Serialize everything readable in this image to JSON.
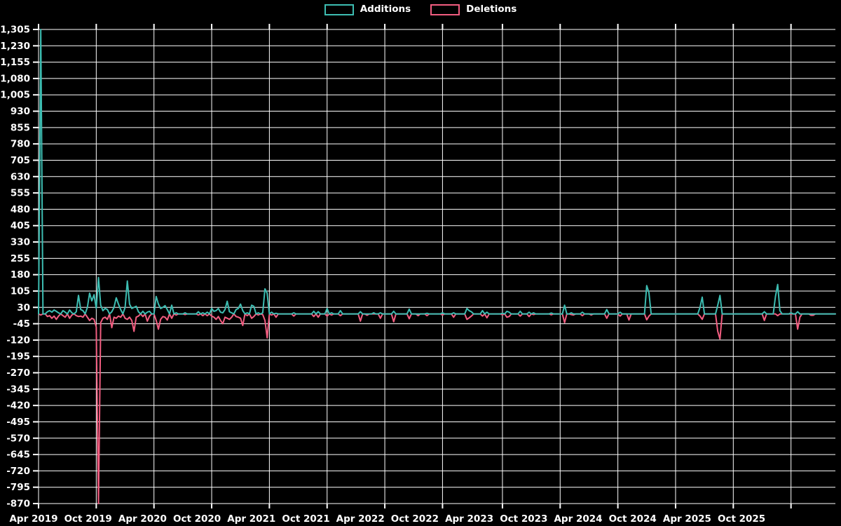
{
  "legend": {
    "items": [
      {
        "label": "Additions",
        "color": "#3dbdb2"
      },
      {
        "label": "Deletions",
        "color": "#f25d80"
      }
    ]
  },
  "chart_data": {
    "type": "line",
    "title": "",
    "background": "#000000",
    "grid_color": "#ffffff",
    "text_color": "#ffffff",
    "grid": true,
    "legend_position": "top-center",
    "x_axis": {
      "unit": "week",
      "start_label": "Apr 2019",
      "n_points": 360,
      "tick_labels": [
        "Apr 2019",
        "Oct 2019",
        "Apr 2020",
        "Oct 2020",
        "Apr 2021",
        "Oct 2021",
        "Apr 2022",
        "Oct 2022",
        "Apr 2023",
        "Oct 2023",
        "Apr 2024",
        "Oct 2024",
        "Apr 2025",
        "Oct 2025"
      ]
    },
    "y_axis": {
      "min": -870,
      "max": 1305,
      "step": 75,
      "tick_values": [
        1305,
        1230,
        1155,
        1080,
        1005,
        930,
        855,
        780,
        705,
        630,
        555,
        480,
        405,
        330,
        255,
        180,
        105,
        30,
        -45,
        -120,
        -195,
        -270,
        -345,
        -420,
        -495,
        -570,
        -645,
        -720,
        -795,
        -870
      ],
      "tick_labels": [
        "1,305",
        "1,230",
        "1,155",
        "1,080",
        "1,005",
        "930",
        "855",
        "780",
        "705",
        "630",
        "555",
        "480",
        "405",
        "330",
        "255",
        "180",
        "105",
        "30",
        "-45",
        "-120",
        "-195",
        "-270",
        "-345",
        "-420",
        "-495",
        "-570",
        "-645",
        "-720",
        "-795",
        "-870"
      ]
    },
    "series": [
      {
        "name": "Additions",
        "color": "#3dbdb2",
        "sign": "positive",
        "default_value": 0
      },
      {
        "name": "Deletions",
        "color": "#f25d80",
        "sign": "negative",
        "default_value": 0
      }
    ],
    "weekly_values": {
      "format": [
        "week_index",
        "additions",
        "deletions"
      ],
      "unlisted_weeks": [
        0,
        0
      ],
      "points": [
        [
          1,
          1305,
          -5
        ],
        [
          4,
          10,
          -12
        ],
        [
          5,
          15,
          -8
        ],
        [
          6,
          8,
          -20
        ],
        [
          7,
          18,
          -10
        ],
        [
          8,
          12,
          -25
        ],
        [
          9,
          5,
          -10
        ],
        [
          11,
          15,
          -8
        ],
        [
          12,
          8,
          -15
        ],
        [
          14,
          18,
          -20
        ],
        [
          15,
          5,
          -5
        ],
        [
          17,
          10,
          -8
        ],
        [
          18,
          85,
          -12
        ],
        [
          19,
          20,
          -10
        ],
        [
          20,
          15,
          -15
        ],
        [
          22,
          30,
          -15
        ],
        [
          23,
          95,
          -30
        ],
        [
          24,
          60,
          -20
        ],
        [
          25,
          88,
          -25
        ],
        [
          26,
          25,
          -60
        ],
        [
          27,
          167,
          -870
        ],
        [
          28,
          40,
          -40
        ],
        [
          29,
          15,
          -20
        ],
        [
          30,
          25,
          -15
        ],
        [
          31,
          20,
          -25
        ],
        [
          33,
          10,
          -63
        ],
        [
          34,
          30,
          -15
        ],
        [
          35,
          74,
          -20
        ],
        [
          36,
          45,
          -10
        ],
        [
          37,
          20,
          -15
        ],
        [
          39,
          30,
          -20
        ],
        [
          40,
          151,
          -25
        ],
        [
          41,
          45,
          -15
        ],
        [
          42,
          25,
          -30
        ],
        [
          43,
          30,
          -80
        ],
        [
          44,
          35,
          -15
        ],
        [
          45,
          10,
          -10
        ],
        [
          47,
          12,
          -12
        ],
        [
          49,
          8,
          -33
        ],
        [
          50,
          12,
          -10
        ],
        [
          53,
          80,
          -30
        ],
        [
          54,
          45,
          -70
        ],
        [
          55,
          25,
          -25
        ],
        [
          56,
          30,
          -12
        ],
        [
          57,
          38,
          -15
        ],
        [
          58,
          20,
          -28
        ],
        [
          60,
          40,
          -20
        ],
        [
          62,
          5,
          -5
        ],
        [
          66,
          5,
          -3
        ],
        [
          72,
          10,
          -5
        ],
        [
          74,
          5,
          -8
        ],
        [
          76,
          8,
          -8
        ],
        [
          78,
          25,
          -10
        ],
        [
          79,
          12,
          -15
        ],
        [
          80,
          15,
          -25
        ],
        [
          81,
          25,
          -12
        ],
        [
          82,
          8,
          -30
        ],
        [
          83,
          5,
          -45
        ],
        [
          84,
          20,
          -15
        ],
        [
          85,
          58,
          -20
        ],
        [
          86,
          10,
          -25
        ],
        [
          87,
          5,
          -15
        ],
        [
          89,
          20,
          -12
        ],
        [
          90,
          25,
          -15
        ],
        [
          91,
          45,
          -20
        ],
        [
          92,
          15,
          -53
        ],
        [
          94,
          5,
          -8
        ],
        [
          96,
          40,
          -20
        ],
        [
          97,
          35,
          -12
        ],
        [
          99,
          5,
          -5
        ],
        [
          101,
          5,
          -3
        ],
        [
          102,
          115,
          -30
        ],
        [
          103,
          95,
          -110
        ],
        [
          105,
          8,
          -5
        ],
        [
          107,
          3,
          -15
        ],
        [
          115,
          5,
          -10
        ],
        [
          124,
          12,
          -12
        ],
        [
          126,
          10,
          -15
        ],
        [
          130,
          25,
          -10
        ],
        [
          132,
          5,
          -5
        ],
        [
          136,
          15,
          -8
        ],
        [
          145,
          10,
          -33
        ],
        [
          148,
          0,
          -6
        ],
        [
          151,
          5,
          0
        ],
        [
          154,
          5,
          -20
        ],
        [
          160,
          12,
          -36
        ],
        [
          167,
          22,
          -22
        ],
        [
          171,
          0,
          -8
        ],
        [
          175,
          3,
          -8
        ],
        [
          182,
          5,
          -5
        ],
        [
          187,
          5,
          -15
        ],
        [
          193,
          25,
          -25
        ],
        [
          194,
          15,
          -18
        ],
        [
          195,
          10,
          -10
        ],
        [
          200,
          15,
          -10
        ],
        [
          202,
          8,
          -18
        ],
        [
          209,
          3,
          -4
        ],
        [
          211,
          12,
          -15
        ],
        [
          212,
          8,
          -12
        ],
        [
          217,
          12,
          -10
        ],
        [
          221,
          8,
          -12
        ],
        [
          223,
          5,
          -3
        ],
        [
          231,
          4,
          -4
        ],
        [
          237,
          40,
          -40
        ],
        [
          240,
          5,
          -3
        ],
        [
          241,
          0,
          -5
        ],
        [
          245,
          8,
          -8
        ],
        [
          249,
          0,
          -5
        ],
        [
          256,
          20,
          -20
        ],
        [
          262,
          8,
          -10
        ],
        [
          266,
          0,
          -28
        ],
        [
          274,
          130,
          -27
        ],
        [
          275,
          97,
          -10
        ],
        [
          298,
          30,
          -10
        ],
        [
          299,
          77,
          -25
        ],
        [
          306,
          40,
          -80
        ],
        [
          307,
          85,
          -115
        ],
        [
          327,
          10,
          -30
        ],
        [
          332,
          80,
          0
        ],
        [
          333,
          135,
          -8
        ],
        [
          334,
          15,
          0
        ],
        [
          339,
          5,
          0
        ],
        [
          342,
          10,
          -70
        ],
        [
          343,
          0,
          -15
        ],
        [
          348,
          0,
          -6
        ],
        [
          349,
          0,
          -6
        ]
      ]
    }
  }
}
